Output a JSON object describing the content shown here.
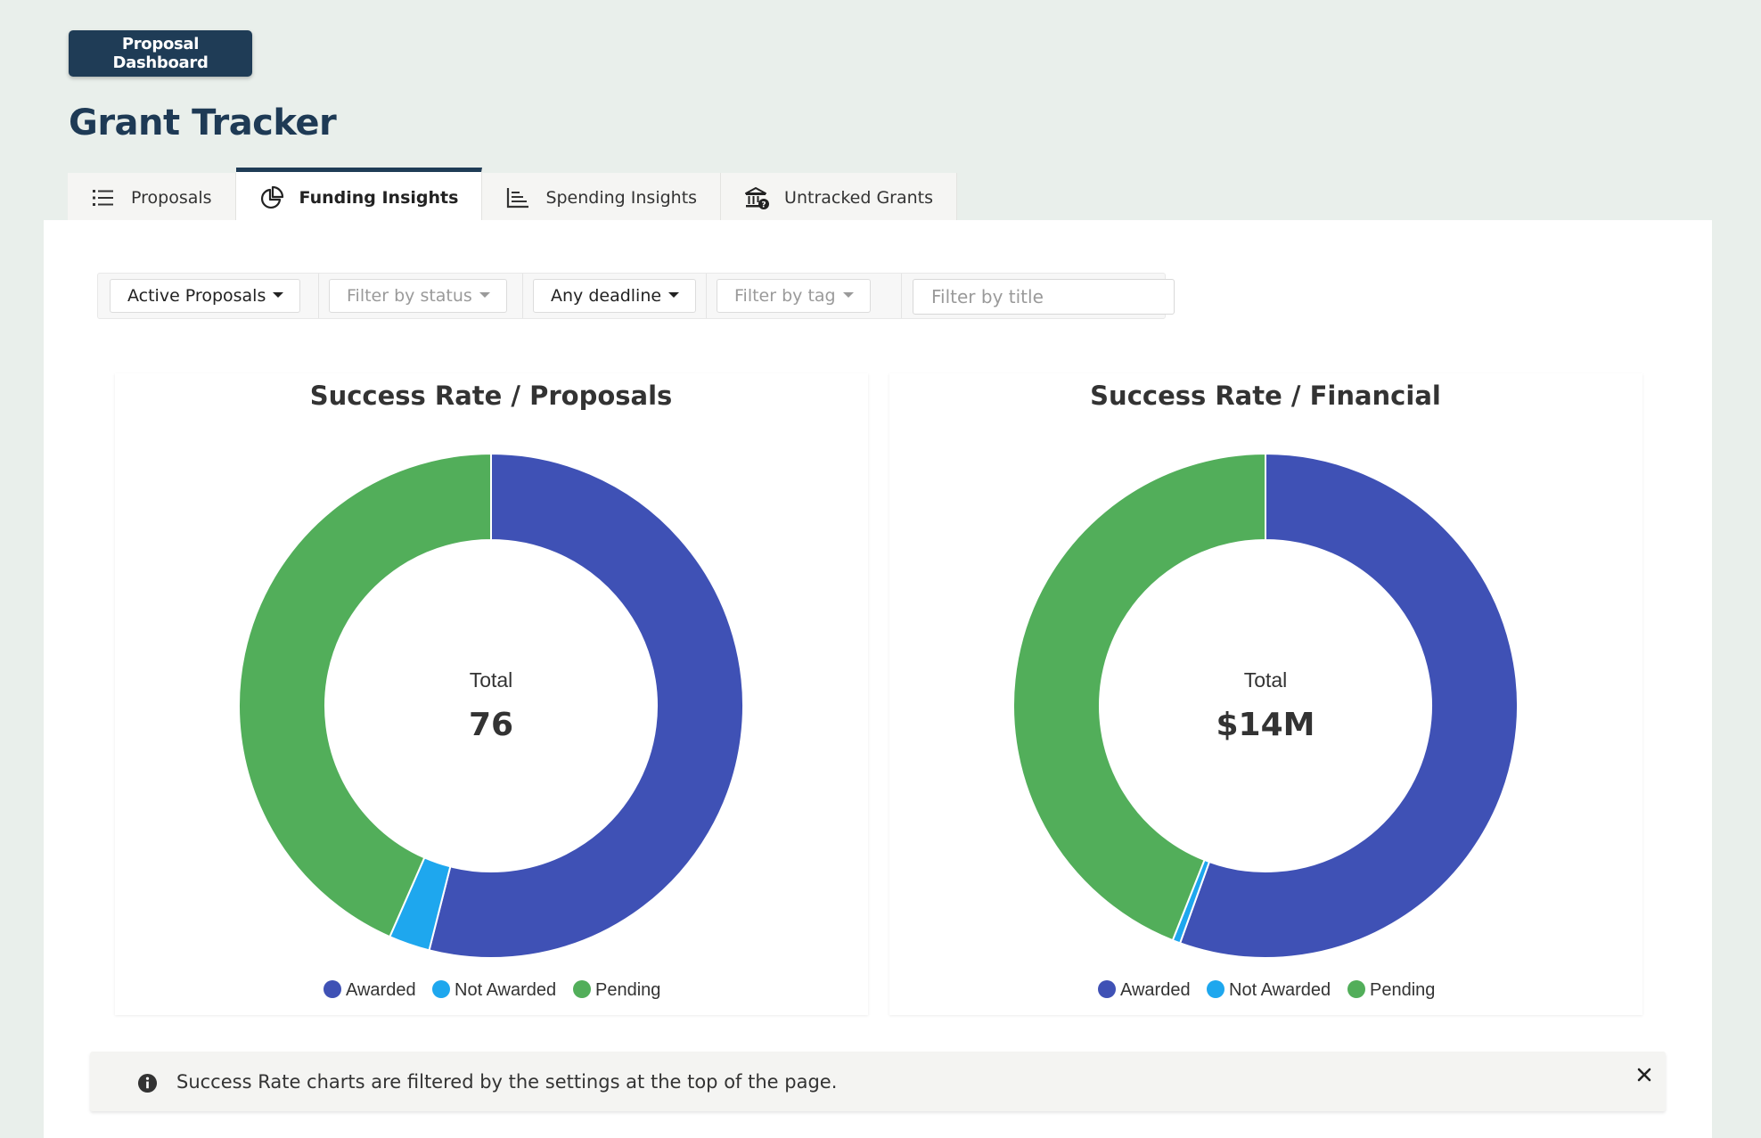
{
  "header": {
    "dashboard_button": "Proposal Dashboard",
    "title": "Grant Tracker"
  },
  "tabs": [
    {
      "label": "Proposals",
      "icon": "list-icon",
      "active": false
    },
    {
      "label": "Funding Insights",
      "icon": "pie-chart-icon",
      "active": true
    },
    {
      "label": "Spending Insights",
      "icon": "bar-chart-icon",
      "active": false
    },
    {
      "label": "Untracked Grants",
      "icon": "bank-question-icon",
      "active": false
    }
  ],
  "filters": {
    "scope": "Active Proposals",
    "status": "Filter by status",
    "deadline": "Any deadline",
    "tag": "Filter by tag",
    "title_placeholder": "Filter by title"
  },
  "colors": {
    "awarded": "#3f51b5",
    "not_awarded": "#1ea7ee",
    "pending": "#52ae5a",
    "primary": "#1f3c56"
  },
  "chart_data": [
    {
      "type": "pie",
      "title": "Success Rate / Proposals",
      "center_label": "Total",
      "center_value": "76",
      "categories": [
        "Awarded",
        "Not Awarded",
        "Pending"
      ],
      "values": [
        41,
        2,
        33
      ]
    },
    {
      "type": "pie",
      "title": "Success Rate / Financial",
      "center_label": "Total",
      "center_value": "$14M",
      "categories": [
        "Awarded",
        "Not Awarded",
        "Pending"
      ],
      "values": [
        55.5,
        0.5,
        44
      ]
    }
  ],
  "alert": {
    "text": "Success Rate charts are filtered by the settings at the top of the page.",
    "icon": "info-icon",
    "close_icon": "close-icon"
  }
}
